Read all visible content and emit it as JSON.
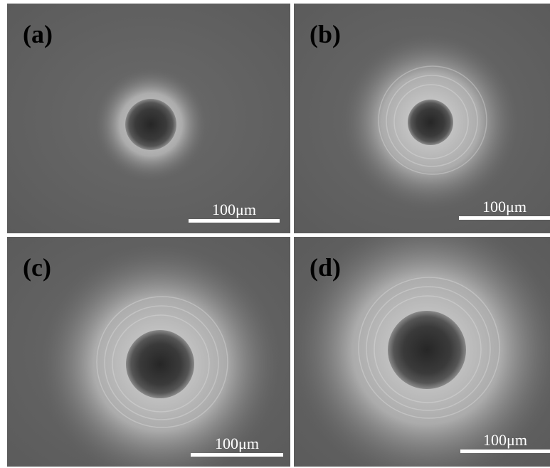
{
  "panels": [
    {
      "label": "(a)",
      "scale_bar": "100μm"
    },
    {
      "label": "(b)",
      "scale_bar": "100μm"
    },
    {
      "label": "(c)",
      "scale_bar": "100μm"
    },
    {
      "label": "(d)",
      "scale_bar": "100μm"
    }
  ]
}
